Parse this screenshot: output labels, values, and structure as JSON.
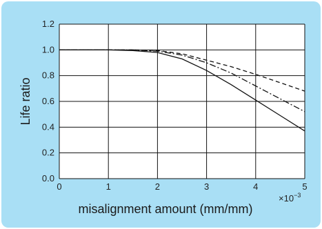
{
  "colors": {
    "panel_background": "#a9dff5",
    "plot_background": "#ffffff",
    "grid": "#111111",
    "series_line": "#111111"
  },
  "chart_data": {
    "type": "line",
    "title": "",
    "xlabel": "misalignment amount (mm/mm)",
    "ylabel": "Life ratio",
    "x_multiplier": {
      "base": "×10",
      "exponent": "−3"
    },
    "xlim": [
      0,
      5
    ],
    "ylim": [
      0.0,
      1.2
    ],
    "xticks": [
      "0",
      "1",
      "2",
      "3",
      "4",
      "5"
    ],
    "yticks": [
      "0.0",
      "0.2",
      "0.4",
      "0.6",
      "0.8",
      "1.0",
      "1.2"
    ],
    "grid": true,
    "legend": "none",
    "series": [
      {
        "style": "dashed",
        "x": [
          0,
          1,
          1.5,
          2,
          2.5,
          3,
          3.5,
          4,
          4.5,
          5
        ],
        "y": [
          1.0,
          1.0,
          1.0,
          0.995,
          0.97,
          0.92,
          0.87,
          0.81,
          0.745,
          0.68
        ]
      },
      {
        "style": "dash-dot",
        "x": [
          0,
          1,
          1.5,
          2,
          2.5,
          3,
          3.5,
          4,
          4.5,
          5
        ],
        "y": [
          1.0,
          1.0,
          1.0,
          0.99,
          0.96,
          0.9,
          0.82,
          0.72,
          0.62,
          0.52
        ]
      },
      {
        "style": "solid",
        "x": [
          0,
          1,
          1.5,
          2,
          2.5,
          3,
          3.5,
          4,
          4.5,
          5
        ],
        "y": [
          1.0,
          1.0,
          0.995,
          0.98,
          0.93,
          0.84,
          0.73,
          0.61,
          0.49,
          0.37
        ]
      }
    ]
  }
}
